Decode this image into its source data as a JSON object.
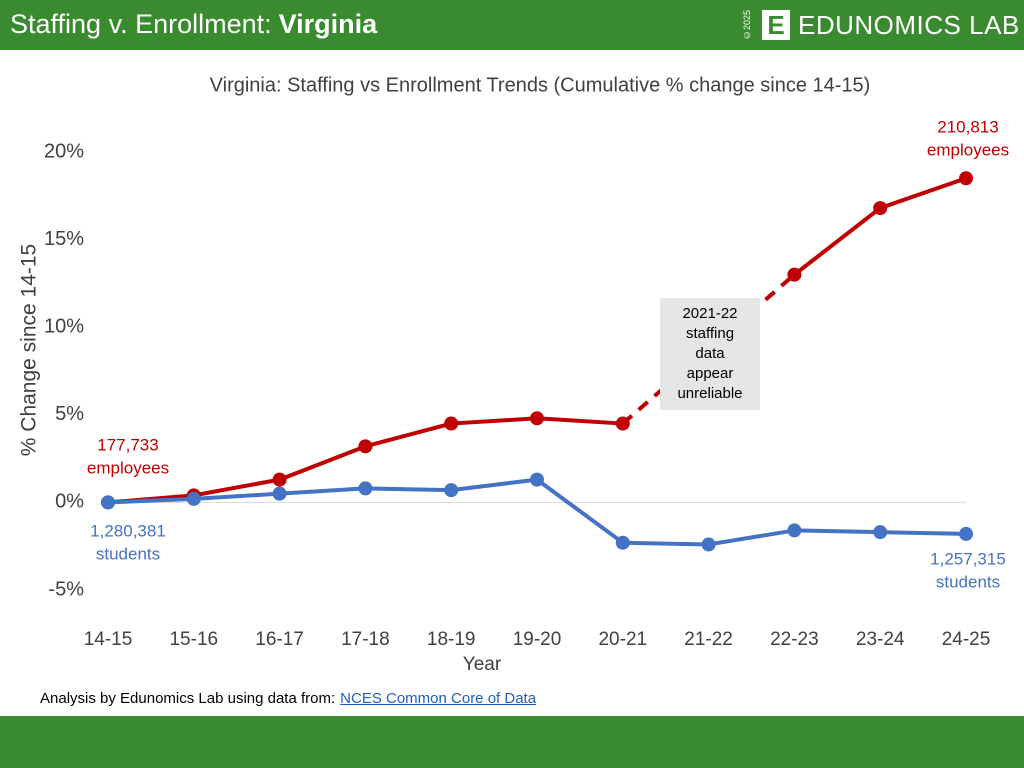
{
  "header": {
    "title": "Staffing v. Enrollment:",
    "title_bold": "Virginia",
    "copyright": "©2025",
    "logo_letter": "E",
    "brand": "EDUNOMICS LAB"
  },
  "footer": {
    "text": "Analysis by Edunomics Lab using data from:",
    "link": "NCES Common Core of Data"
  },
  "chart_data": {
    "type": "line",
    "title": "Virginia: Staffing vs Enrollment Trends (Cumulative % change since 14-15)",
    "x_label": "Year",
    "y_label": "% Change since 14-15",
    "categories": [
      "14-15",
      "15-16",
      "16-17",
      "17-18",
      "18-19",
      "19-20",
      "20-21",
      "21-22",
      "22-23",
      "23-24",
      "24-25"
    ],
    "series": [
      {
        "name": "Staffing",
        "color": "#c00000",
        "values": [
          0,
          0.4,
          1.3,
          3.2,
          4.5,
          4.8,
          4.5,
          null,
          13,
          16.8,
          18.5
        ]
      },
      {
        "name": "Enrollment",
        "color": "#4472c4",
        "values": [
          0,
          0.2,
          0.5,
          0.8,
          0.7,
          1.3,
          -2.3,
          -2.4,
          -1.6,
          -1.7,
          -1.8
        ]
      }
    ],
    "gap_line": "dashed",
    "ylim": [
      -5,
      20
    ],
    "yticks": [
      {
        "value": -5,
        "label": "-5%"
      },
      {
        "value": 0,
        "label": "0%"
      },
      {
        "value": 5,
        "label": "5%"
      },
      {
        "value": 10,
        "label": "10%"
      },
      {
        "value": 15,
        "label": "15%"
      },
      {
        "value": 20,
        "label": "20%"
      }
    ],
    "zero_line": true,
    "annotations": [
      {
        "lines": [
          "177,733",
          "employees"
        ],
        "color": "#c00000"
      },
      {
        "lines": [
          "1,280,381",
          "students"
        ],
        "color": "#4472c4"
      },
      {
        "lines": [
          "210,813",
          "employees"
        ],
        "color": "#c00000"
      },
      {
        "lines": [
          "1,257,315",
          "students"
        ],
        "color": "#4472c4"
      },
      {
        "lines": [
          "2021-22",
          "staffing",
          "data",
          "appear",
          "unreliable"
        ],
        "color": "#000000",
        "boxed": true
      }
    ]
  }
}
